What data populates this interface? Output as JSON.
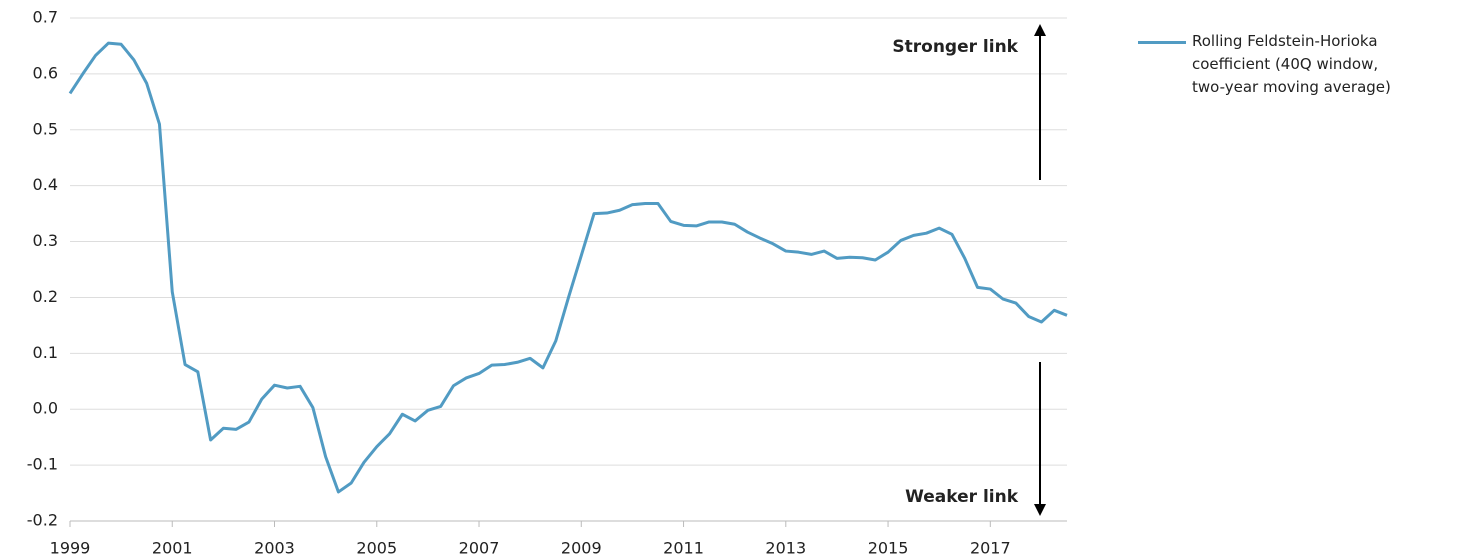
{
  "chart_data": {
    "type": "line",
    "annotations": [
      "Stronger link",
      "Weaker link"
    ],
    "x": [
      1999,
      1999.25,
      1999.5,
      1999.75,
      2000,
      2000.25,
      2000.5,
      2000.75,
      2001,
      2001.25,
      2001.5,
      2001.75,
      2002,
      2002.25,
      2002.5,
      2002.75,
      2003,
      2003.25,
      2003.5,
      2003.75,
      2004,
      2004.25,
      2004.5,
      2004.75,
      2005,
      2005.25,
      2005.5,
      2005.75,
      2006,
      2006.25,
      2006.5,
      2006.75,
      2007,
      2007.25,
      2007.5,
      2007.75,
      2008,
      2008.25,
      2008.5,
      2008.75,
      2009,
      2009.25,
      2009.5,
      2009.75,
      2010,
      2010.25,
      2010.5,
      2010.75,
      2011,
      2011.25,
      2011.5,
      2011.75,
      2012,
      2012.25,
      2012.5,
      2012.75,
      2013,
      2013.25,
      2013.5,
      2013.75,
      2014,
      2014.25,
      2014.5,
      2014.75,
      2015,
      2015.25,
      2015.5,
      2015.75,
      2016,
      2016.25,
      2016.5,
      2016.75,
      2017,
      2017.25,
      2017.5,
      2017.75,
      2018,
      2018.25,
      2018.5
    ],
    "series": [
      {
        "name": "Rolling Feldstein-Horioka coefficient (40Q window, two-year moving average)",
        "color": "#519bc3",
        "values": [
          0.565,
          0.6,
          0.633,
          0.655,
          0.653,
          0.625,
          0.583,
          0.51,
          0.21,
          0.08,
          0.067,
          -0.055,
          -0.034,
          -0.036,
          -0.023,
          0.018,
          0.043,
          0.038,
          0.041,
          0.003,
          -0.085,
          -0.148,
          -0.132,
          -0.095,
          -0.067,
          -0.044,
          -0.009,
          -0.021,
          -0.002,
          0.005,
          0.042,
          0.056,
          0.064,
          0.079,
          0.08,
          0.084,
          0.091,
          0.074,
          0.122,
          0.2,
          0.275,
          0.35,
          0.351,
          0.356,
          0.366,
          0.368,
          0.368,
          0.336,
          0.329,
          0.328,
          0.335,
          0.335,
          0.331,
          0.317,
          0.306,
          0.296,
          0.283,
          0.281,
          0.277,
          0.283,
          0.27,
          0.272,
          0.271,
          0.267,
          0.281,
          0.302,
          0.311,
          0.315,
          0.324,
          0.313,
          0.27,
          0.218,
          0.215,
          0.197,
          0.19,
          0.166,
          0.156,
          0.177,
          0.168
        ]
      }
    ],
    "xlim": [
      1999,
      2018.5
    ],
    "xticks": [
      1999,
      2001,
      2003,
      2005,
      2007,
      2009,
      2011,
      2013,
      2015,
      2017
    ],
    "ylim": [
      -0.2,
      0.7
    ],
    "yticks": [
      -0.2,
      -0.1,
      {
        "value": 0,
        "label": "0.0"
      },
      0.1,
      0.2,
      0.3,
      0.4,
      0.5,
      0.6,
      0.7
    ],
    "grid": true,
    "legend": "right"
  }
}
